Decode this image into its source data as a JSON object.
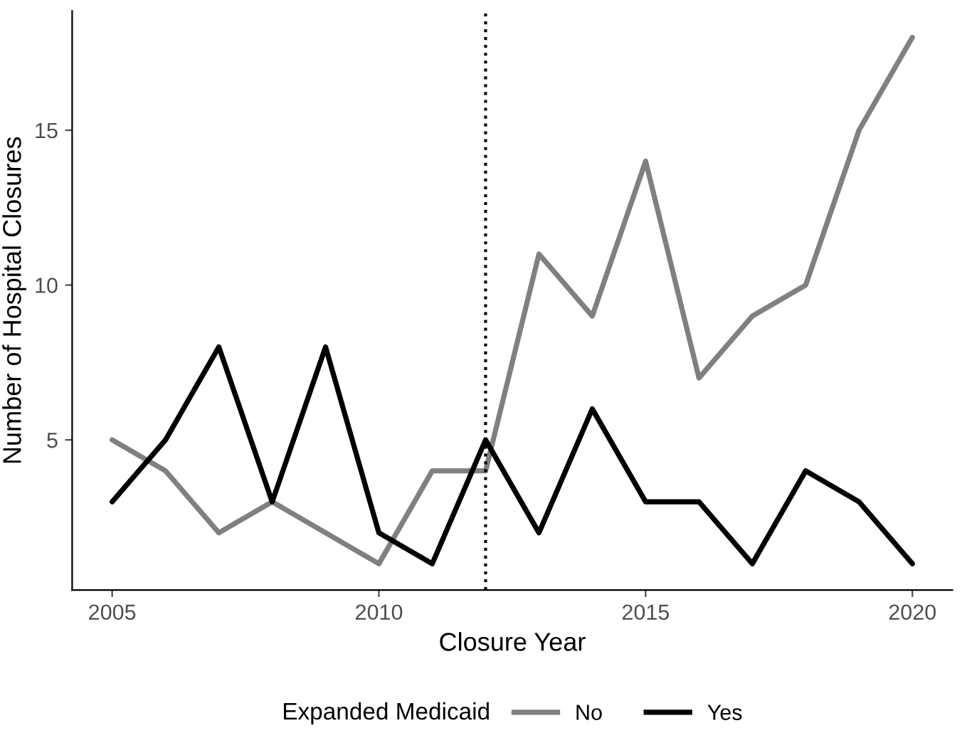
{
  "chart_data": {
    "type": "line",
    "xlabel": "Closure Year",
    "ylabel": "Number of Hospital Closures",
    "legend_title": "Expanded Medicaid",
    "x": [
      2005,
      2006,
      2007,
      2008,
      2009,
      2010,
      2011,
      2012,
      2013,
      2014,
      2015,
      2016,
      2017,
      2018,
      2019,
      2020
    ],
    "series": [
      {
        "name": "No",
        "color": "#808080",
        "values": [
          5,
          4,
          2,
          3,
          2,
          1,
          4,
          4,
          11,
          9,
          14,
          7,
          9,
          10,
          15,
          18
        ]
      },
      {
        "name": "Yes",
        "color": "#000000",
        "values": [
          3,
          5,
          8,
          3,
          8,
          2,
          1,
          5,
          2,
          6,
          3,
          3,
          1,
          4,
          3,
          1
        ]
      }
    ],
    "xlim": [
      2004.25,
      2020.75
    ],
    "ylim": [
      0.15,
      18.85
    ],
    "xticks": [
      2005,
      2010,
      2015,
      2020
    ],
    "yticks": [
      5,
      10,
      15
    ],
    "ref_lines": [
      {
        "axis": "x",
        "value": 2012,
        "line_style": "dotted",
        "color": "#000000"
      }
    ],
    "grid": false,
    "legend": "bottom",
    "marker": "none",
    "line_style": "solid"
  }
}
